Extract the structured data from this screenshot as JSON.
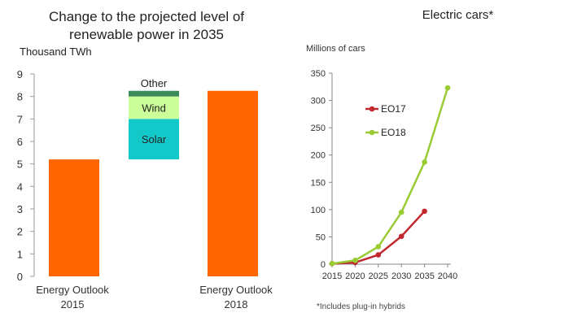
{
  "chart_data": [
    {
      "type": "bar",
      "title": "Change to the projected level of renewable power in 2035",
      "title_lines": [
        "Change to the projected level of",
        "renewable power in 2035"
      ],
      "ylabel": "Thousand TWh",
      "ylim": [
        0,
        9
      ],
      "yticks": [
        "0",
        "1",
        "2",
        "3",
        "4",
        "5",
        "6",
        "7",
        "8",
        "9"
      ],
      "grid": false,
      "colors": {
        "bar": "#ff6600",
        "solar": "#12c8c8",
        "wind": "#ccff99",
        "other": "#3a8a5a"
      },
      "bars": [
        {
          "label_lines": [
            "Energy Outlook",
            "2015"
          ],
          "value": 5.2
        },
        {
          "label_lines": [
            "Energy Outlook",
            "2018"
          ],
          "value": 8.25
        }
      ],
      "waterfall": {
        "base": 5.2,
        "segments": [
          {
            "name": "Solar",
            "value": 1.8
          },
          {
            "name": "Wind",
            "value": 1.0
          },
          {
            "name": "Other",
            "value": 0.25
          }
        ]
      }
    },
    {
      "type": "line",
      "title": "Electric cars*",
      "ylabel": "Millions of cars",
      "x": [
        2015,
        2020,
        2025,
        2030,
        2035,
        2040
      ],
      "xticks": [
        "2015",
        "2020",
        "2025",
        "2030",
        "2035",
        "2040"
      ],
      "ylim": [
        0,
        350
      ],
      "yticks": [
        "0",
        "50",
        "100",
        "150",
        "200",
        "250",
        "300",
        "350"
      ],
      "grid": false,
      "legend": "top-left",
      "series": [
        {
          "name": "EO17",
          "color": "#c0282d",
          "x": [
            2015,
            2020,
            2025,
            2030,
            2035
          ],
          "values": [
            1,
            3,
            17,
            51,
            97
          ]
        },
        {
          "name": "EO18",
          "color": "#99cc33",
          "x": [
            2015,
            2020,
            2025,
            2030,
            2035,
            2040
          ],
          "values": [
            1,
            7,
            32,
            95,
            187,
            323
          ]
        }
      ],
      "footnote": "*Includes plug-in hybrids"
    }
  ]
}
